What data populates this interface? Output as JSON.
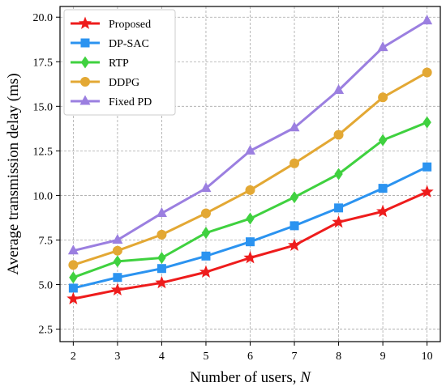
{
  "chart_data": {
    "type": "line",
    "xlabel": "Number of users, ",
    "xlabel_var": "N",
    "ylabel": "Average transmission delay (ms)",
    "x": [
      2,
      3,
      4,
      5,
      6,
      7,
      8,
      9,
      10
    ],
    "xlim": [
      1.7,
      10.3
    ],
    "ylim": [
      1.8,
      20.6
    ],
    "yticks": [
      2.5,
      5.0,
      7.5,
      10.0,
      12.5,
      15.0,
      17.5,
      20.0
    ],
    "ytick_labels": [
      "2.5",
      "5.0",
      "7.5",
      "10.0",
      "12.5",
      "15.0",
      "17.5",
      "20.0"
    ],
    "xtick_labels": [
      "2",
      "3",
      "4",
      "5",
      "6",
      "7",
      "8",
      "9",
      "10"
    ],
    "grid": true,
    "legend_position": "top-left",
    "series": [
      {
        "name": "Proposed",
        "marker": "star",
        "color": "#ee1c1c",
        "values": [
          4.2,
          4.7,
          5.1,
          5.7,
          6.5,
          7.2,
          8.5,
          9.1,
          10.2
        ]
      },
      {
        "name": "DP-SAC",
        "marker": "square",
        "color": "#2b93f0",
        "values": [
          4.8,
          5.4,
          5.9,
          6.6,
          7.4,
          8.3,
          9.3,
          10.4,
          11.6
        ]
      },
      {
        "name": "RTP",
        "marker": "diamond",
        "color": "#3fd13f",
        "values": [
          5.4,
          6.3,
          6.5,
          7.9,
          8.7,
          9.9,
          11.2,
          13.1,
          14.1
        ]
      },
      {
        "name": "DDPG",
        "marker": "circle",
        "color": "#e3a834",
        "values": [
          6.1,
          6.9,
          7.8,
          9.0,
          10.3,
          11.8,
          13.4,
          15.5,
          16.9
        ]
      },
      {
        "name": "Fixed PD",
        "marker": "triangle",
        "color": "#9b7fe0",
        "values": [
          6.9,
          7.5,
          9.0,
          10.4,
          12.5,
          13.8,
          15.9,
          18.3,
          19.8
        ]
      }
    ]
  }
}
